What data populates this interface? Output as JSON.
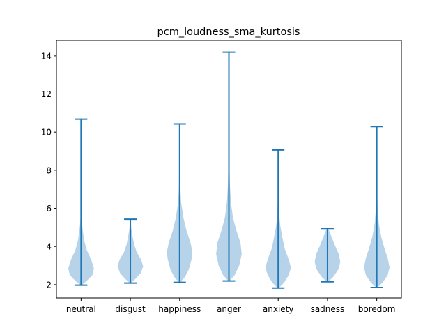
{
  "chart_data": {
    "type": "violin",
    "title": "pcm_loudness_sma_kurtosis",
    "xlabel": "",
    "ylabel": "",
    "ylim": [
      1.3,
      14.8
    ],
    "y_ticks": [
      2,
      4,
      6,
      8,
      10,
      12,
      14
    ],
    "categories": [
      "neutral",
      "disgust",
      "happiness",
      "anger",
      "anxiety",
      "sadness",
      "boredom"
    ],
    "colors": {
      "body": "#b7d3e9",
      "line": "#1f77b4"
    },
    "violins": [
      {
        "category": "neutral",
        "min": 1.97,
        "max": 10.68,
        "density": [
          [
            1.97,
            0.05
          ],
          [
            2.2,
            0.45
          ],
          [
            2.5,
            0.88
          ],
          [
            2.85,
            1.0
          ],
          [
            3.3,
            0.8
          ],
          [
            3.8,
            0.45
          ],
          [
            4.3,
            0.25
          ],
          [
            4.8,
            0.14
          ],
          [
            5.3,
            0.06
          ],
          [
            6.0,
            0.03
          ],
          [
            7.5,
            0.015
          ],
          [
            9.0,
            0.01
          ],
          [
            10.68,
            0.005
          ]
        ]
      },
      {
        "category": "disgust",
        "min": 2.08,
        "max": 5.43,
        "density": [
          [
            2.08,
            0.05
          ],
          [
            2.3,
            0.4
          ],
          [
            2.6,
            0.8
          ],
          [
            2.95,
            1.0
          ],
          [
            3.3,
            0.85
          ],
          [
            3.7,
            0.5
          ],
          [
            4.1,
            0.3
          ],
          [
            4.5,
            0.18
          ],
          [
            4.9,
            0.08
          ],
          [
            5.2,
            0.04
          ],
          [
            5.43,
            0.02
          ]
        ]
      },
      {
        "category": "happiness",
        "min": 2.12,
        "max": 10.43,
        "density": [
          [
            2.12,
            0.05
          ],
          [
            2.4,
            0.42
          ],
          [
            2.8,
            0.72
          ],
          [
            3.3,
            0.92
          ],
          [
            3.7,
            1.0
          ],
          [
            4.2,
            0.85
          ],
          [
            4.8,
            0.55
          ],
          [
            5.5,
            0.3
          ],
          [
            6.3,
            0.12
          ],
          [
            7.0,
            0.06
          ],
          [
            8.0,
            0.03
          ],
          [
            9.0,
            0.015
          ],
          [
            10.43,
            0.005
          ]
        ]
      },
      {
        "category": "anger",
        "min": 2.19,
        "max": 14.19,
        "density": [
          [
            2.19,
            0.05
          ],
          [
            2.5,
            0.45
          ],
          [
            3.0,
            0.8
          ],
          [
            3.6,
            1.0
          ],
          [
            4.2,
            0.9
          ],
          [
            4.8,
            0.6
          ],
          [
            5.5,
            0.32
          ],
          [
            6.3,
            0.16
          ],
          [
            7.2,
            0.08
          ],
          [
            8.3,
            0.04
          ],
          [
            9.5,
            0.02
          ],
          [
            11.0,
            0.012
          ],
          [
            12.5,
            0.008
          ],
          [
            14.19,
            0.004
          ]
        ]
      },
      {
        "category": "anxiety",
        "min": 1.82,
        "max": 9.06,
        "density": [
          [
            1.82,
            0.05
          ],
          [
            2.1,
            0.45
          ],
          [
            2.5,
            0.82
          ],
          [
            2.9,
            1.0
          ],
          [
            3.4,
            0.78
          ],
          [
            3.9,
            0.5
          ],
          [
            4.5,
            0.32
          ],
          [
            5.1,
            0.16
          ],
          [
            5.7,
            0.07
          ],
          [
            6.5,
            0.03
          ],
          [
            7.5,
            0.015
          ],
          [
            9.06,
            0.005
          ]
        ]
      },
      {
        "category": "sadness",
        "min": 2.15,
        "max": 4.95,
        "density": [
          [
            2.15,
            0.05
          ],
          [
            2.4,
            0.45
          ],
          [
            2.8,
            0.85
          ],
          [
            3.2,
            1.0
          ],
          [
            3.6,
            0.88
          ],
          [
            4.0,
            0.62
          ],
          [
            4.4,
            0.38
          ],
          [
            4.7,
            0.2
          ],
          [
            4.95,
            0.06
          ]
        ]
      },
      {
        "category": "boredom",
        "min": 1.85,
        "max": 10.29,
        "density": [
          [
            1.85,
            0.05
          ],
          [
            2.1,
            0.45
          ],
          [
            2.5,
            0.85
          ],
          [
            2.9,
            1.0
          ],
          [
            3.4,
            0.85
          ],
          [
            3.9,
            0.6
          ],
          [
            4.5,
            0.35
          ],
          [
            5.2,
            0.16
          ],
          [
            6.0,
            0.07
          ],
          [
            7.0,
            0.03
          ],
          [
            8.5,
            0.015
          ],
          [
            10.29,
            0.005
          ]
        ]
      }
    ]
  }
}
